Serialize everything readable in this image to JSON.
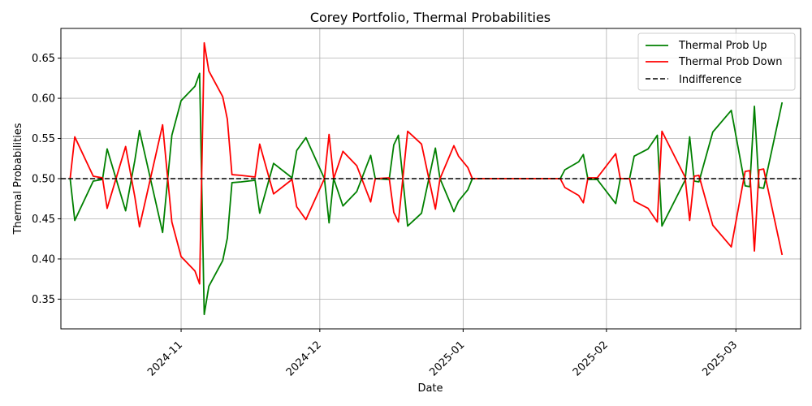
{
  "chart_data": {
    "type": "line",
    "title": "Corey Portfolio, Thermal Probabilities",
    "xlabel": "Date",
    "ylabel": "Thermal Probabilities",
    "ylim": [
      0.313,
      0.687
    ],
    "xlim": [
      "2024-10-06",
      "2025-03-15"
    ],
    "x_ticks": [
      "2024-11-01",
      "2024-12-01",
      "2025-01-01",
      "2025-02-01",
      "2025-03-01"
    ],
    "x_tick_labels": [
      "2024-11",
      "2024-12",
      "2025-01",
      "2025-02",
      "2025-03"
    ],
    "y_ticks": [
      0.35,
      0.4,
      0.45,
      0.5,
      0.55,
      0.6,
      0.65
    ],
    "y_tick_labels": [
      "0.35",
      "0.40",
      "0.45",
      "0.50",
      "0.55",
      "0.60",
      "0.65"
    ],
    "grid": true,
    "legend_position": "top-right",
    "indifference": {
      "name": "Indifference",
      "value": 0.5,
      "color": "#000000",
      "style": "dashed"
    },
    "series": [
      {
        "name": "Thermal Prob Up",
        "color": "#008000",
        "points": [
          [
            "2024-10-08",
            0.5
          ],
          [
            "2024-10-09",
            0.448
          ],
          [
            "2024-10-13",
            0.497
          ],
          [
            "2024-10-15",
            0.499
          ],
          [
            "2024-10-16",
            0.537
          ],
          [
            "2024-10-20",
            0.46
          ],
          [
            "2024-10-22",
            0.523
          ],
          [
            "2024-10-23",
            0.56
          ],
          [
            "2024-10-28",
            0.433
          ],
          [
            "2024-10-30",
            0.554
          ],
          [
            "2024-11-01",
            0.597
          ],
          [
            "2024-11-04",
            0.615
          ],
          [
            "2024-11-05",
            0.631
          ],
          [
            "2024-11-06",
            0.331
          ],
          [
            "2024-11-07",
            0.366
          ],
          [
            "2024-11-10",
            0.398
          ],
          [
            "2024-11-11",
            0.426
          ],
          [
            "2024-11-12",
            0.495
          ],
          [
            "2024-11-14",
            0.496
          ],
          [
            "2024-11-17",
            0.498
          ],
          [
            "2024-11-18",
            0.457
          ],
          [
            "2024-11-21",
            0.519
          ],
          [
            "2024-11-25",
            0.501
          ],
          [
            "2024-11-26",
            0.535
          ],
          [
            "2024-11-28",
            0.551
          ],
          [
            "2024-12-02",
            0.5
          ],
          [
            "2024-12-03",
            0.445
          ],
          [
            "2024-12-04",
            0.5
          ],
          [
            "2024-12-06",
            0.466
          ],
          [
            "2024-12-09",
            0.484
          ],
          [
            "2024-12-12",
            0.529
          ],
          [
            "2024-12-13",
            0.5
          ],
          [
            "2024-12-16",
            0.499
          ],
          [
            "2024-12-17",
            0.542
          ],
          [
            "2024-12-18",
            0.554
          ],
          [
            "2024-12-20",
            0.441
          ],
          [
            "2024-12-23",
            0.457
          ],
          [
            "2024-12-26",
            0.538
          ],
          [
            "2024-12-27",
            0.5
          ],
          [
            "2024-12-30",
            0.459
          ],
          [
            "2024-12-31",
            0.472
          ],
          [
            "2025-01-02",
            0.486
          ],
          [
            "2025-01-03",
            0.5
          ],
          [
            "2025-01-22",
            0.5
          ],
          [
            "2025-01-23",
            0.511
          ],
          [
            "2025-01-26",
            0.521
          ],
          [
            "2025-01-27",
            0.53
          ],
          [
            "2025-01-28",
            0.499
          ],
          [
            "2025-01-30",
            0.499
          ],
          [
            "2025-02-03",
            0.469
          ],
          [
            "2025-02-04",
            0.5
          ],
          [
            "2025-02-06",
            0.5
          ],
          [
            "2025-02-07",
            0.528
          ],
          [
            "2025-02-10",
            0.537
          ],
          [
            "2025-02-12",
            0.554
          ],
          [
            "2025-02-13",
            0.441
          ],
          [
            "2025-02-18",
            0.498
          ],
          [
            "2025-02-19",
            0.552
          ],
          [
            "2025-02-20",
            0.497
          ],
          [
            "2025-02-21",
            0.496
          ],
          [
            "2025-02-24",
            0.558
          ],
          [
            "2025-02-28",
            0.585
          ],
          [
            "2025-03-03",
            0.491
          ],
          [
            "2025-03-04",
            0.49
          ],
          [
            "2025-03-05",
            0.59
          ],
          [
            "2025-03-06",
            0.489
          ],
          [
            "2025-03-07",
            0.488
          ],
          [
            "2025-03-11",
            0.595
          ]
        ]
      },
      {
        "name": "Thermal Prob Down",
        "color": "#ff0000",
        "points": [
          [
            "2024-10-08",
            0.5
          ],
          [
            "2024-10-09",
            0.552
          ],
          [
            "2024-10-13",
            0.503
          ],
          [
            "2024-10-15",
            0.501
          ],
          [
            "2024-10-16",
            0.463
          ],
          [
            "2024-10-20",
            0.54
          ],
          [
            "2024-10-22",
            0.477
          ],
          [
            "2024-10-23",
            0.44
          ],
          [
            "2024-10-28",
            0.567
          ],
          [
            "2024-10-30",
            0.446
          ],
          [
            "2024-11-01",
            0.403
          ],
          [
            "2024-11-04",
            0.385
          ],
          [
            "2024-11-05",
            0.369
          ],
          [
            "2024-11-06",
            0.669
          ],
          [
            "2024-11-07",
            0.634
          ],
          [
            "2024-11-10",
            0.602
          ],
          [
            "2024-11-11",
            0.574
          ],
          [
            "2024-11-12",
            0.505
          ],
          [
            "2024-11-14",
            0.504
          ],
          [
            "2024-11-17",
            0.502
          ],
          [
            "2024-11-18",
            0.543
          ],
          [
            "2024-11-21",
            0.481
          ],
          [
            "2024-11-25",
            0.499
          ],
          [
            "2024-11-26",
            0.465
          ],
          [
            "2024-11-28",
            0.449
          ],
          [
            "2024-12-02",
            0.5
          ],
          [
            "2024-12-03",
            0.555
          ],
          [
            "2024-12-04",
            0.5
          ],
          [
            "2024-12-06",
            0.534
          ],
          [
            "2024-12-09",
            0.516
          ],
          [
            "2024-12-12",
            0.471
          ],
          [
            "2024-12-13",
            0.5
          ],
          [
            "2024-12-16",
            0.501
          ],
          [
            "2024-12-17",
            0.458
          ],
          [
            "2024-12-18",
            0.446
          ],
          [
            "2024-12-20",
            0.559
          ],
          [
            "2024-12-23",
            0.543
          ],
          [
            "2024-12-26",
            0.462
          ],
          [
            "2024-12-27",
            0.5
          ],
          [
            "2024-12-30",
            0.541
          ],
          [
            "2024-12-31",
            0.528
          ],
          [
            "2025-01-02",
            0.514
          ],
          [
            "2025-01-03",
            0.5
          ],
          [
            "2025-01-22",
            0.5
          ],
          [
            "2025-01-23",
            0.489
          ],
          [
            "2025-01-26",
            0.479
          ],
          [
            "2025-01-27",
            0.47
          ],
          [
            "2025-01-28",
            0.501
          ],
          [
            "2025-01-30",
            0.501
          ],
          [
            "2025-02-03",
            0.531
          ],
          [
            "2025-02-04",
            0.5
          ],
          [
            "2025-02-06",
            0.5
          ],
          [
            "2025-02-07",
            0.472
          ],
          [
            "2025-02-10",
            0.463
          ],
          [
            "2025-02-12",
            0.446
          ],
          [
            "2025-02-13",
            0.559
          ],
          [
            "2025-02-18",
            0.502
          ],
          [
            "2025-02-19",
            0.448
          ],
          [
            "2025-02-20",
            0.503
          ],
          [
            "2025-02-21",
            0.504
          ],
          [
            "2025-02-24",
            0.442
          ],
          [
            "2025-02-28",
            0.415
          ],
          [
            "2025-03-03",
            0.509
          ],
          [
            "2025-03-04",
            0.51
          ],
          [
            "2025-03-05",
            0.41
          ],
          [
            "2025-03-06",
            0.511
          ],
          [
            "2025-03-07",
            0.512
          ],
          [
            "2025-03-11",
            0.405
          ]
        ]
      }
    ]
  }
}
